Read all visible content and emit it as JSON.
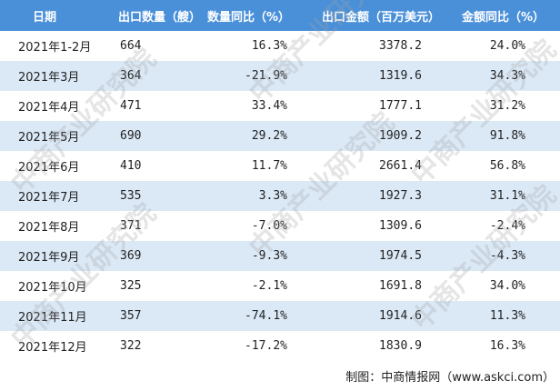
{
  "table": {
    "headers": [
      "日期",
      "出口数量（艘）",
      "数量同比（%）",
      "出口金额（百万美元）",
      "金额同比（%）"
    ],
    "rows": [
      [
        "2021年1-2月",
        "664",
        "16.3%",
        "3378.2",
        "24.0%"
      ],
      [
        "2021年3月",
        "364",
        "-21.9%",
        "1319.6",
        "34.3%"
      ],
      [
        "2021年4月",
        "471",
        "33.4%",
        "1777.1",
        "31.2%"
      ],
      [
        "2021年5月",
        "690",
        "29.2%",
        "1909.2",
        "91.8%"
      ],
      [
        "2021年6月",
        "410",
        "11.7%",
        "2661.4",
        "56.8%"
      ],
      [
        "2021年7月",
        "535",
        "3.3%",
        "1927.3",
        "31.1%"
      ],
      [
        "2021年8月",
        "371",
        "-7.0%",
        "1309.6",
        "-2.4%"
      ],
      [
        "2021年9月",
        "369",
        "-9.3%",
        "1974.5",
        "-4.3%"
      ],
      [
        "2021年10月",
        "325",
        "-2.1%",
        "1691.8",
        "34.0%"
      ],
      [
        "2021年11月",
        "357",
        "-74.1%",
        "1914.6",
        "11.3%"
      ],
      [
        "2021年12月",
        "322",
        "-17.2%",
        "1830.9",
        "16.3%"
      ]
    ]
  },
  "source": "制图：中商情报网（www.askci.com）",
  "watermark_text": "中商产业研究院",
  "colors": {
    "header_bg": "#4a90d9",
    "stripe_bg": "#dbe9f7"
  }
}
